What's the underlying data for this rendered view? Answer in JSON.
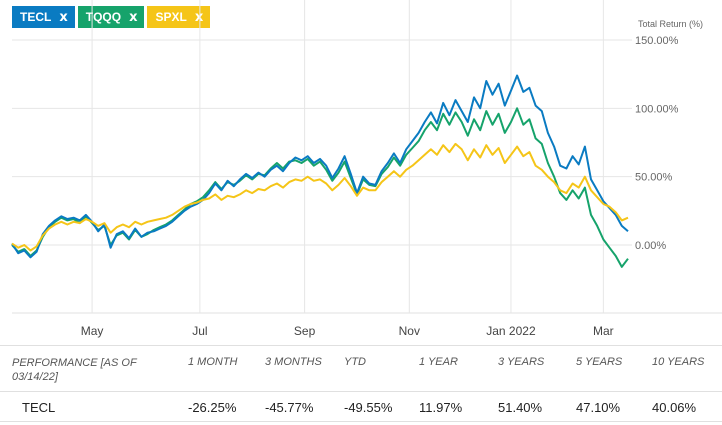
{
  "chips": [
    {
      "label": "TECL",
      "close": "x",
      "color": "#0a7bc2"
    },
    {
      "label": "TQQQ",
      "close": "x",
      "color": "#16a36b"
    },
    {
      "label": "SPXL",
      "close": "x",
      "color": "#f5c518"
    }
  ],
  "chart_data": {
    "type": "line",
    "title": "",
    "ylabel": "Total Return (%)",
    "xlabel": "",
    "ylim": [
      -50,
      150
    ],
    "xlim": [
      0,
      100
    ],
    "x_ticks": [
      {
        "label": "May",
        "x": 13
      },
      {
        "label": "Jul",
        "x": 30.5
      },
      {
        "label": "Sep",
        "x": 47.5
      },
      {
        "label": "Nov",
        "x": 64.5
      },
      {
        "label": "Jan 2022",
        "x": 81
      },
      {
        "label": "Mar",
        "x": 96
      }
    ],
    "y_ticks": [
      {
        "label": "150.00%",
        "value": 150
      },
      {
        "label": "100.00%",
        "value": 100
      },
      {
        "label": "50.00%",
        "value": 50
      },
      {
        "label": "0.00%",
        "value": 0
      }
    ],
    "grid": true,
    "series": [
      {
        "name": "TECL",
        "color": "#0a7bc2",
        "points": [
          [
            0,
            1
          ],
          [
            1,
            -6
          ],
          [
            2,
            -4
          ],
          [
            3,
            -9
          ],
          [
            4,
            -5
          ],
          [
            5,
            8
          ],
          [
            6,
            14
          ],
          [
            7,
            18
          ],
          [
            8,
            21
          ],
          [
            9,
            19
          ],
          [
            10,
            20
          ],
          [
            11,
            18
          ],
          [
            12,
            22
          ],
          [
            13,
            17
          ],
          [
            14,
            10
          ],
          [
            15,
            15
          ],
          [
            16,
            -2
          ],
          [
            17,
            8
          ],
          [
            18,
            10
          ],
          [
            19,
            5
          ],
          [
            20,
            12
          ],
          [
            21,
            6
          ],
          [
            22,
            9
          ],
          [
            23,
            10
          ],
          [
            24,
            12
          ],
          [
            25,
            14
          ],
          [
            26,
            17
          ],
          [
            27,
            21
          ],
          [
            28,
            25
          ],
          [
            29,
            28
          ],
          [
            30,
            30
          ],
          [
            31,
            33
          ],
          [
            32,
            38
          ],
          [
            33,
            45
          ],
          [
            34,
            40
          ],
          [
            35,
            47
          ],
          [
            36,
            43
          ],
          [
            37,
            48
          ],
          [
            38,
            52
          ],
          [
            39,
            49
          ],
          [
            40,
            53
          ],
          [
            41,
            50
          ],
          [
            42,
            55
          ],
          [
            43,
            58
          ],
          [
            44,
            54
          ],
          [
            45,
            60
          ],
          [
            46,
            64
          ],
          [
            47,
            62
          ],
          [
            48,
            65
          ],
          [
            49,
            60
          ],
          [
            50,
            63
          ],
          [
            51,
            58
          ],
          [
            52,
            49
          ],
          [
            53,
            56
          ],
          [
            54,
            65
          ],
          [
            55,
            52
          ],
          [
            56,
            38
          ],
          [
            57,
            50
          ],
          [
            58,
            45
          ],
          [
            59,
            44
          ],
          [
            60,
            54
          ],
          [
            61,
            60
          ],
          [
            62,
            67
          ],
          [
            63,
            60
          ],
          [
            64,
            70
          ],
          [
            65,
            76
          ],
          [
            66,
            82
          ],
          [
            67,
            90
          ],
          [
            68,
            97
          ],
          [
            69,
            89
          ],
          [
            70,
            104
          ],
          [
            71,
            95
          ],
          [
            72,
            106
          ],
          [
            73,
            98
          ],
          [
            74,
            90
          ],
          [
            75,
            108
          ],
          [
            76,
            100
          ],
          [
            77,
            120
          ],
          [
            78,
            110
          ],
          [
            79,
            118
          ],
          [
            80,
            102
          ],
          [
            81,
            113
          ],
          [
            82,
            124
          ],
          [
            83,
            112
          ],
          [
            84,
            115
          ],
          [
            85,
            102
          ],
          [
            86,
            98
          ],
          [
            87,
            82
          ],
          [
            88,
            72
          ],
          [
            89,
            58
          ],
          [
            90,
            56
          ],
          [
            91,
            65
          ],
          [
            92,
            59
          ],
          [
            93,
            72
          ],
          [
            94,
            48
          ],
          [
            95,
            40
          ],
          [
            96,
            32
          ],
          [
            97,
            27
          ],
          [
            98,
            22
          ],
          [
            99,
            14
          ],
          [
            100,
            10
          ]
        ]
      },
      {
        "name": "TQQQ",
        "color": "#16a36b",
        "points": [
          [
            0,
            0
          ],
          [
            1,
            -5
          ],
          [
            2,
            -3
          ],
          [
            3,
            -8
          ],
          [
            4,
            -4
          ],
          [
            5,
            6
          ],
          [
            6,
            13
          ],
          [
            7,
            17
          ],
          [
            8,
            20
          ],
          [
            9,
            18
          ],
          [
            10,
            19
          ],
          [
            11,
            16
          ],
          [
            12,
            21
          ],
          [
            13,
            16
          ],
          [
            14,
            11
          ],
          [
            15,
            14
          ],
          [
            16,
            0
          ],
          [
            17,
            7
          ],
          [
            18,
            9
          ],
          [
            19,
            4
          ],
          [
            20,
            11
          ],
          [
            21,
            6
          ],
          [
            22,
            8
          ],
          [
            23,
            11
          ],
          [
            24,
            13
          ],
          [
            25,
            15
          ],
          [
            26,
            18
          ],
          [
            27,
            22
          ],
          [
            28,
            26
          ],
          [
            29,
            30
          ],
          [
            30,
            32
          ],
          [
            31,
            35
          ],
          [
            32,
            40
          ],
          [
            33,
            46
          ],
          [
            34,
            41
          ],
          [
            35,
            46
          ],
          [
            36,
            44
          ],
          [
            37,
            47
          ],
          [
            38,
            51
          ],
          [
            39,
            48
          ],
          [
            40,
            52
          ],
          [
            41,
            51
          ],
          [
            42,
            56
          ],
          [
            43,
            60
          ],
          [
            44,
            56
          ],
          [
            45,
            61
          ],
          [
            46,
            62
          ],
          [
            47,
            60
          ],
          [
            48,
            63
          ],
          [
            49,
            58
          ],
          [
            50,
            61
          ],
          [
            51,
            55
          ],
          [
            52,
            47
          ],
          [
            53,
            53
          ],
          [
            54,
            61
          ],
          [
            55,
            49
          ],
          [
            56,
            37
          ],
          [
            57,
            48
          ],
          [
            58,
            44
          ],
          [
            59,
            43
          ],
          [
            60,
            52
          ],
          [
            61,
            57
          ],
          [
            62,
            64
          ],
          [
            63,
            58
          ],
          [
            64,
            66
          ],
          [
            65,
            71
          ],
          [
            66,
            76
          ],
          [
            67,
            84
          ],
          [
            68,
            90
          ],
          [
            69,
            84
          ],
          [
            70,
            96
          ],
          [
            71,
            88
          ],
          [
            72,
            97
          ],
          [
            73,
            90
          ],
          [
            74,
            80
          ],
          [
            75,
            92
          ],
          [
            76,
            84
          ],
          [
            77,
            98
          ],
          [
            78,
            88
          ],
          [
            79,
            96
          ],
          [
            80,
            82
          ],
          [
            81,
            90
          ],
          [
            82,
            100
          ],
          [
            83,
            88
          ],
          [
            84,
            92
          ],
          [
            85,
            78
          ],
          [
            86,
            74
          ],
          [
            87,
            60
          ],
          [
            88,
            50
          ],
          [
            89,
            38
          ],
          [
            90,
            33
          ],
          [
            91,
            40
          ],
          [
            92,
            34
          ],
          [
            93,
            42
          ],
          [
            94,
            22
          ],
          [
            95,
            14
          ],
          [
            96,
            4
          ],
          [
            97,
            -2
          ],
          [
            98,
            -8
          ],
          [
            99,
            -16
          ],
          [
            100,
            -10
          ]
        ]
      },
      {
        "name": "SPXL",
        "color": "#f5c518",
        "points": [
          [
            0,
            1
          ],
          [
            1,
            -2
          ],
          [
            2,
            0
          ],
          [
            3,
            -4
          ],
          [
            4,
            -1
          ],
          [
            5,
            7
          ],
          [
            6,
            12
          ],
          [
            7,
            15
          ],
          [
            8,
            17
          ],
          [
            9,
            15
          ],
          [
            10,
            17
          ],
          [
            11,
            16
          ],
          [
            12,
            19
          ],
          [
            13,
            17
          ],
          [
            14,
            14
          ],
          [
            15,
            16
          ],
          [
            16,
            9
          ],
          [
            17,
            13
          ],
          [
            18,
            15
          ],
          [
            19,
            13
          ],
          [
            20,
            17
          ],
          [
            21,
            15
          ],
          [
            22,
            17
          ],
          [
            23,
            18
          ],
          [
            24,
            19
          ],
          [
            25,
            20
          ],
          [
            26,
            22
          ],
          [
            27,
            25
          ],
          [
            28,
            28
          ],
          [
            29,
            30
          ],
          [
            30,
            31
          ],
          [
            31,
            33
          ],
          [
            32,
            34
          ],
          [
            33,
            37
          ],
          [
            34,
            33
          ],
          [
            35,
            36
          ],
          [
            36,
            35
          ],
          [
            37,
            37
          ],
          [
            38,
            40
          ],
          [
            39,
            38
          ],
          [
            40,
            41
          ],
          [
            41,
            40
          ],
          [
            42,
            43
          ],
          [
            43,
            45
          ],
          [
            44,
            42
          ],
          [
            45,
            46
          ],
          [
            46,
            48
          ],
          [
            47,
            47
          ],
          [
            48,
            50
          ],
          [
            49,
            47
          ],
          [
            50,
            48
          ],
          [
            51,
            45
          ],
          [
            52,
            40
          ],
          [
            53,
            44
          ],
          [
            54,
            49
          ],
          [
            55,
            43
          ],
          [
            56,
            36
          ],
          [
            57,
            42
          ],
          [
            58,
            40
          ],
          [
            59,
            40
          ],
          [
            60,
            46
          ],
          [
            61,
            50
          ],
          [
            62,
            54
          ],
          [
            63,
            50
          ],
          [
            64,
            55
          ],
          [
            65,
            58
          ],
          [
            66,
            62
          ],
          [
            67,
            66
          ],
          [
            68,
            70
          ],
          [
            69,
            66
          ],
          [
            70,
            73
          ],
          [
            71,
            68
          ],
          [
            72,
            74
          ],
          [
            73,
            70
          ],
          [
            74,
            62
          ],
          [
            75,
            70
          ],
          [
            76,
            64
          ],
          [
            77,
            73
          ],
          [
            78,
            66
          ],
          [
            79,
            71
          ],
          [
            80,
            60
          ],
          [
            81,
            66
          ],
          [
            82,
            72
          ],
          [
            83,
            65
          ],
          [
            84,
            68
          ],
          [
            85,
            58
          ],
          [
            86,
            55
          ],
          [
            87,
            50
          ],
          [
            88,
            46
          ],
          [
            89,
            40
          ],
          [
            90,
            38
          ],
          [
            91,
            45
          ],
          [
            92,
            42
          ],
          [
            93,
            50
          ],
          [
            94,
            40
          ],
          [
            95,
            35
          ],
          [
            96,
            30
          ],
          [
            97,
            28
          ],
          [
            98,
            24
          ],
          [
            99,
            18
          ],
          [
            100,
            20
          ]
        ]
      }
    ]
  },
  "performance": {
    "header_label": "PERFORMANCE [as of 03/14/22]",
    "columns": [
      "1 MONTH",
      "3 MONTHS",
      "YTD",
      "1 YEAR",
      "3 YEARS",
      "5 YEARS",
      "10 YEARS"
    ],
    "rows": [
      {
        "fund": "TECL",
        "values": [
          "-26.25%",
          "-45.77%",
          "-49.55%",
          "11.97%",
          "51.40%",
          "47.10%",
          "40.06%"
        ]
      }
    ]
  }
}
